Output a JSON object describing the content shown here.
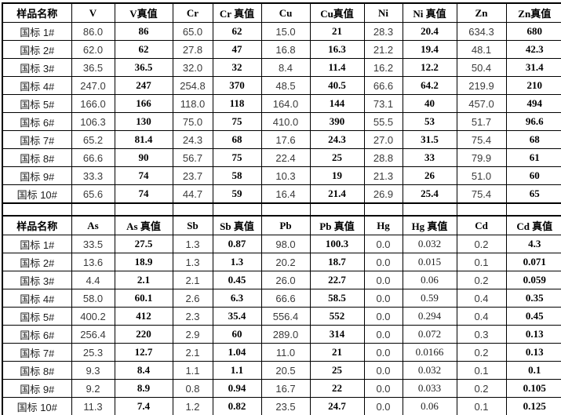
{
  "colors": {
    "background": "#ffffff",
    "border": "#000000",
    "header_text": "#000000",
    "true_value_text": "#000000",
    "measured_text": "#3a3a3a"
  },
  "table1": {
    "headers": [
      "样品名称",
      "V",
      "V真值",
      "Cr",
      "Cr 真值",
      "Cu",
      "Cu真值",
      "Ni",
      "Ni 真值",
      "Zn",
      "Zn真值"
    ],
    "rows": [
      [
        "国标 1#",
        "86.0",
        "86",
        "65.0",
        "62",
        "15.0",
        "21",
        "28.3",
        "20.4",
        "634.3",
        "680"
      ],
      [
        "国标 2#",
        "62.0",
        "62",
        "27.8",
        "47",
        "16.8",
        "16.3",
        "21.2",
        "19.4",
        "48.1",
        "42.3"
      ],
      [
        "国标 3#",
        "36.5",
        "36.5",
        "32.0",
        "32",
        "8.4",
        "11.4",
        "16.2",
        "12.2",
        "50.4",
        "31.4"
      ],
      [
        "国标 4#",
        "247.0",
        "247",
        "254.8",
        "370",
        "48.5",
        "40.5",
        "66.6",
        "64.2",
        "219.9",
        "210"
      ],
      [
        "国标 5#",
        "166.0",
        "166",
        "118.0",
        "118",
        "164.0",
        "144",
        "73.1",
        "40",
        "457.0",
        "494"
      ],
      [
        "国标 6#",
        "106.3",
        "130",
        "75.0",
        "75",
        "410.0",
        "390",
        "55.5",
        "53",
        "51.7",
        "96.6"
      ],
      [
        "国标 7#",
        "65.2",
        "81.4",
        "24.3",
        "68",
        "17.6",
        "24.3",
        "27.0",
        "31.5",
        "75.4",
        "68"
      ],
      [
        "国标 8#",
        "66.6",
        "90",
        "56.7",
        "75",
        "22.4",
        "25",
        "28.8",
        "33",
        "79.9",
        "61"
      ],
      [
        "国标 9#",
        "33.3",
        "74",
        "23.7",
        "58",
        "10.3",
        "19",
        "21.3",
        "26",
        "51.0",
        "60"
      ],
      [
        "国标 10#",
        "65.6",
        "74",
        "44.7",
        "59",
        "16.4",
        "21.4",
        "26.9",
        "25.4",
        "75.4",
        "65"
      ]
    ]
  },
  "table2": {
    "headers": [
      "样品名称",
      "As",
      "As 真值",
      "Sb",
      "Sb 真值",
      "Pb",
      "Pb 真值",
      "Hg",
      "Hg 真值",
      "Cd",
      "Cd 真值"
    ],
    "rows": [
      [
        "国标 1#",
        "33.5",
        "27.5",
        "1.3",
        "0.87",
        "98.0",
        "100.3",
        "0.0",
        "0.032",
        "0.2",
        "4.3"
      ],
      [
        "国标 2#",
        "13.6",
        "18.9",
        "1.3",
        "1.3",
        "20.2",
        "18.7",
        "0.0",
        "0.015",
        "0.1",
        "0.071"
      ],
      [
        "国标 3#",
        "4.4",
        "2.1",
        "2.1",
        "0.45",
        "26.0",
        "22.7",
        "0.0",
        "0.06",
        "0.2",
        "0.059"
      ],
      [
        "国标 4#",
        "58.0",
        "60.1",
        "2.6",
        "6.3",
        "66.6",
        "58.5",
        "0.0",
        "0.59",
        "0.4",
        "0.35"
      ],
      [
        "国标 5#",
        "400.2",
        "412",
        "2.3",
        "35.4",
        "556.4",
        "552",
        "0.0",
        "0.294",
        "0.4",
        "0.45"
      ],
      [
        "国标 6#",
        "256.4",
        "220",
        "2.9",
        "60",
        "289.0",
        "314",
        "0.0",
        "0.072",
        "0.3",
        "0.13"
      ],
      [
        "国标 7#",
        "25.3",
        "12.7",
        "2.1",
        "1.04",
        "11.0",
        "21",
        "0.0",
        "0.0166",
        "0.2",
        "0.13"
      ],
      [
        "国标 8#",
        "9.3",
        "8.4",
        "1.1",
        "1.1",
        "20.5",
        "25",
        "0.0",
        "0.032",
        "0.1",
        "0.1"
      ],
      [
        "国标 9#",
        "9.2",
        "8.9",
        "0.8",
        "0.94",
        "16.7",
        "22",
        "0.0",
        "0.033",
        "0.2",
        "0.105"
      ],
      [
        "国标 10#",
        "11.3",
        "7.4",
        "1.2",
        "0.82",
        "23.5",
        "24.7",
        "0.0",
        "0.06",
        "0.1",
        "0.125"
      ]
    ]
  }
}
